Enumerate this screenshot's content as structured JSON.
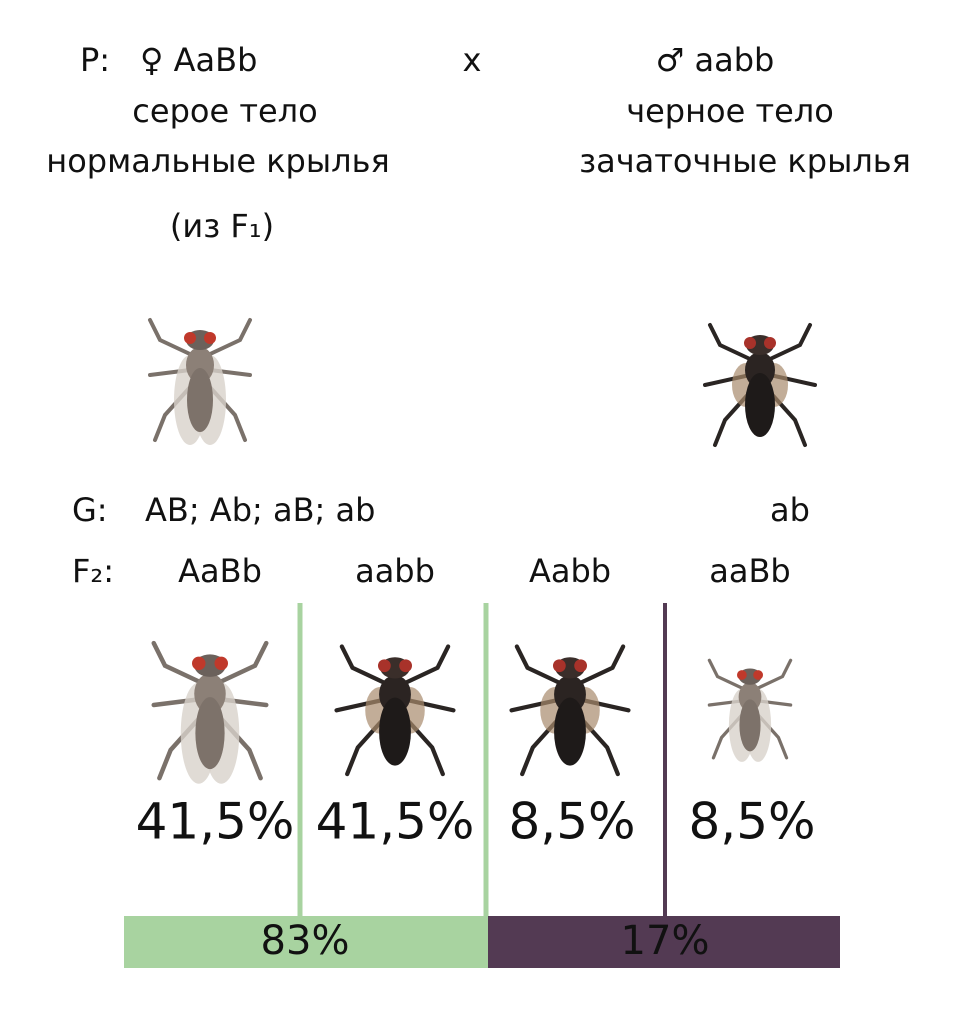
{
  "parents": {
    "label": "P:",
    "female": {
      "genotype": "♀ AaBb",
      "traits": [
        "серое тело",
        "нормальные крылья"
      ],
      "note": "(из F₁)"
    },
    "cross": "x",
    "male": {
      "genotype": "♂ aabb",
      "traits": [
        "черное тело",
        "зачаточные крылья"
      ]
    }
  },
  "gametes": {
    "label": "G:",
    "female": "AB; Ab; aB; ab",
    "male": "ab"
  },
  "offspring": {
    "label": "F₂:",
    "groups": [
      {
        "genotype": "AaBb",
        "percent": "41,5%"
      },
      {
        "genotype": "aabb",
        "percent": "41,5%"
      },
      {
        "genotype": "Aabb",
        "percent": "8,5%"
      },
      {
        "genotype": "aaBb",
        "percent": "8,5%"
      }
    ]
  },
  "summary": [
    "83%",
    "17%"
  ]
}
